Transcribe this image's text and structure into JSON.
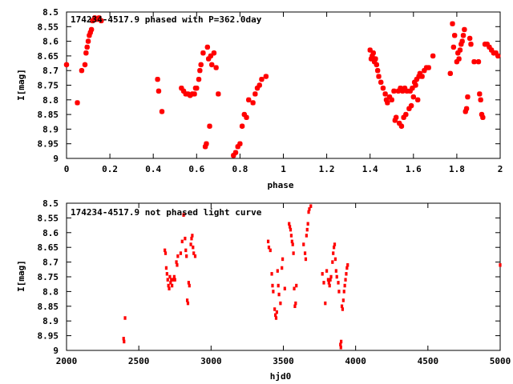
{
  "colors": {
    "points": "#ff0000",
    "axis": "#000000"
  },
  "chart_data": [
    {
      "type": "scatter",
      "title": "174234-4517.9 phased with P=362.0day",
      "xlabel": "phase",
      "ylabel": "I[mag]",
      "xlim": [
        0,
        2
      ],
      "ylim": [
        8.5,
        9
      ],
      "y_inverted": true,
      "grid": false,
      "xticks": [
        "0",
        "0.2",
        "0.4",
        "0.6",
        "0.8",
        "1",
        "1.2",
        "1.4",
        "1.6",
        "1.8",
        "2"
      ],
      "xtick_values": [
        0,
        0.2,
        0.4,
        0.6,
        0.8,
        1.0,
        1.2,
        1.4,
        1.6,
        1.8,
        2.0
      ],
      "yticks": [
        "8.5",
        "8.55",
        "8.6",
        "8.65",
        "8.7",
        "8.75",
        "8.8",
        "8.85",
        "8.9",
        "8.95",
        "9"
      ],
      "ytick_values": [
        8.5,
        8.55,
        8.6,
        8.65,
        8.7,
        8.75,
        8.8,
        8.85,
        8.9,
        8.95,
        9.0
      ],
      "points": [
        [
          0.0,
          8.68
        ],
        [
          0.05,
          8.81
        ],
        [
          0.07,
          8.7
        ],
        [
          0.085,
          8.68
        ],
        [
          0.09,
          8.64
        ],
        [
          0.095,
          8.62
        ],
        [
          0.1,
          8.6
        ],
        [
          0.105,
          8.58
        ],
        [
          0.11,
          8.57
        ],
        [
          0.115,
          8.56
        ],
        [
          0.12,
          8.53
        ],
        [
          0.13,
          8.52
        ],
        [
          0.14,
          8.525
        ],
        [
          0.15,
          8.52
        ],
        [
          0.16,
          8.53
        ],
        [
          0.42,
          8.73
        ],
        [
          0.425,
          8.77
        ],
        [
          0.44,
          8.84
        ],
        [
          0.53,
          8.76
        ],
        [
          0.54,
          8.77
        ],
        [
          0.55,
          8.78
        ],
        [
          0.56,
          8.78
        ],
        [
          0.57,
          8.785
        ],
        [
          0.58,
          8.78
        ],
        [
          0.59,
          8.78
        ],
        [
          0.595,
          8.76
        ],
        [
          0.6,
          8.76
        ],
        [
          0.61,
          8.73
        ],
        [
          0.615,
          8.7
        ],
        [
          0.62,
          8.68
        ],
        [
          0.63,
          8.64
        ],
        [
          0.64,
          8.96
        ],
        [
          0.645,
          8.95
        ],
        [
          0.65,
          8.62
        ],
        [
          0.655,
          8.66
        ],
        [
          0.66,
          8.89
        ],
        [
          0.665,
          8.65
        ],
        [
          0.67,
          8.68
        ],
        [
          0.68,
          8.64
        ],
        [
          0.69,
          8.69
        ],
        [
          0.7,
          8.78
        ],
        [
          0.77,
          8.99
        ],
        [
          0.78,
          8.98
        ],
        [
          0.79,
          8.96
        ],
        [
          0.8,
          8.95
        ],
        [
          0.81,
          8.89
        ],
        [
          0.82,
          8.85
        ],
        [
          0.83,
          8.86
        ],
        [
          0.84,
          8.8
        ],
        [
          0.86,
          8.81
        ],
        [
          0.87,
          8.78
        ],
        [
          0.88,
          8.76
        ],
        [
          0.89,
          8.75
        ],
        [
          0.9,
          8.73
        ],
        [
          0.92,
          8.72
        ],
        [
          1.4,
          8.63
        ],
        [
          1.405,
          8.66
        ],
        [
          1.41,
          8.65
        ],
        [
          1.415,
          8.64
        ],
        [
          1.42,
          8.67
        ],
        [
          1.425,
          8.66
        ],
        [
          1.43,
          8.68
        ],
        [
          1.435,
          8.7
        ],
        [
          1.44,
          8.72
        ],
        [
          1.45,
          8.74
        ],
        [
          1.46,
          8.76
        ],
        [
          1.47,
          8.78
        ],
        [
          1.475,
          8.8
        ],
        [
          1.48,
          8.81
        ],
        [
          1.49,
          8.79
        ],
        [
          1.5,
          8.8
        ],
        [
          1.51,
          8.77
        ],
        [
          1.515,
          8.87
        ],
        [
          1.52,
          8.86
        ],
        [
          1.53,
          8.77
        ],
        [
          1.535,
          8.88
        ],
        [
          1.54,
          8.76
        ],
        [
          1.545,
          8.89
        ],
        [
          1.55,
          8.77
        ],
        [
          1.555,
          8.86
        ],
        [
          1.56,
          8.76
        ],
        [
          1.565,
          8.85
        ],
        [
          1.57,
          8.77
        ],
        [
          1.58,
          8.83
        ],
        [
          1.585,
          8.77
        ],
        [
          1.59,
          8.82
        ],
        [
          1.595,
          8.76
        ],
        [
          1.6,
          8.79
        ],
        [
          1.605,
          8.74
        ],
        [
          1.61,
          8.75
        ],
        [
          1.615,
          8.73
        ],
        [
          1.62,
          8.8
        ],
        [
          1.625,
          8.72
        ],
        [
          1.63,
          8.71
        ],
        [
          1.64,
          8.72
        ],
        [
          1.65,
          8.7
        ],
        [
          1.66,
          8.69
        ],
        [
          1.67,
          8.69
        ],
        [
          1.69,
          8.65
        ],
        [
          1.77,
          8.71
        ],
        [
          1.78,
          8.54
        ],
        [
          1.785,
          8.62
        ],
        [
          1.79,
          8.58
        ],
        [
          1.8,
          8.67
        ],
        [
          1.805,
          8.64
        ],
        [
          1.81,
          8.66
        ],
        [
          1.815,
          8.63
        ],
        [
          1.82,
          8.61
        ],
        [
          1.825,
          8.6
        ],
        [
          1.83,
          8.58
        ],
        [
          1.835,
          8.56
        ],
        [
          1.84,
          8.84
        ],
        [
          1.845,
          8.83
        ],
        [
          1.85,
          8.79
        ],
        [
          1.86,
          8.59
        ],
        [
          1.865,
          8.61
        ],
        [
          1.88,
          8.67
        ],
        [
          1.9,
          8.67
        ],
        [
          1.905,
          8.78
        ],
        [
          1.91,
          8.8
        ],
        [
          1.915,
          8.85
        ],
        [
          1.92,
          8.86
        ],
        [
          1.93,
          8.61
        ],
        [
          1.94,
          8.61
        ],
        [
          1.95,
          8.62
        ],
        [
          1.96,
          8.63
        ],
        [
          1.97,
          8.64
        ],
        [
          1.98,
          8.64
        ],
        [
          1.99,
          8.65
        ]
      ]
    },
    {
      "type": "scatter",
      "title": "174234-4517.9 not phased light curve",
      "xlabel": "hjd0",
      "ylabel": "I[mag]",
      "xlim": [
        2000,
        5000
      ],
      "ylim": [
        8.5,
        9
      ],
      "y_inverted": true,
      "grid": false,
      "xticks": [
        "2000",
        "2500",
        "3000",
        "3500",
        "4000",
        "4500",
        "5000"
      ],
      "xtick_values": [
        2000,
        2500,
        3000,
        3500,
        4000,
        4500,
        5000
      ],
      "yticks": [
        "8.5",
        "8.55",
        "8.6",
        "8.65",
        "8.7",
        "8.75",
        "8.8",
        "8.85",
        "8.9",
        "8.95",
        "9"
      ],
      "ytick_values": [
        8.5,
        8.55,
        8.6,
        8.65,
        8.7,
        8.75,
        8.8,
        8.85,
        8.9,
        8.95,
        9.0
      ],
      "points": [
        [
          2395,
          8.96
        ],
        [
          2398,
          8.97
        ],
        [
          2405,
          8.89
        ],
        [
          2680,
          8.66
        ],
        [
          2685,
          8.67
        ],
        [
          2690,
          8.72
        ],
        [
          2695,
          8.74
        ],
        [
          2700,
          8.76
        ],
        [
          2705,
          8.78
        ],
        [
          2710,
          8.79
        ],
        [
          2715,
          8.75
        ],
        [
          2720,
          8.77
        ],
        [
          2725,
          8.76
        ],
        [
          2730,
          8.78
        ],
        [
          2740,
          8.76
        ],
        [
          2745,
          8.75
        ],
        [
          2750,
          8.76
        ],
        [
          2760,
          8.7
        ],
        [
          2765,
          8.71
        ],
        [
          2770,
          8.68
        ],
        [
          2790,
          8.67
        ],
        [
          2800,
          8.63
        ],
        [
          2810,
          8.54
        ],
        [
          2820,
          8.62
        ],
        [
          2825,
          8.66
        ],
        [
          2830,
          8.68
        ],
        [
          2835,
          8.83
        ],
        [
          2840,
          8.84
        ],
        [
          2845,
          8.77
        ],
        [
          2850,
          8.78
        ],
        [
          2860,
          8.64
        ],
        [
          2865,
          8.62
        ],
        [
          2870,
          8.61
        ],
        [
          2875,
          8.65
        ],
        [
          2880,
          8.67
        ],
        [
          2890,
          8.68
        ],
        [
          3395,
          8.63
        ],
        [
          3400,
          8.65
        ],
        [
          3410,
          8.66
        ],
        [
          3420,
          8.74
        ],
        [
          3425,
          8.78
        ],
        [
          3430,
          8.8
        ],
        [
          3440,
          8.86
        ],
        [
          3445,
          8.88
        ],
        [
          3450,
          8.89
        ],
        [
          3455,
          8.87
        ],
        [
          3460,
          8.73
        ],
        [
          3465,
          8.78
        ],
        [
          3470,
          8.81
        ],
        [
          3480,
          8.84
        ],
        [
          3490,
          8.72
        ],
        [
          3495,
          8.69
        ],
        [
          3510,
          8.79
        ],
        [
          3540,
          8.57
        ],
        [
          3545,
          8.58
        ],
        [
          3550,
          8.59
        ],
        [
          3555,
          8.61
        ],
        [
          3560,
          8.63
        ],
        [
          3565,
          8.64
        ],
        [
          3570,
          8.67
        ],
        [
          3575,
          8.79
        ],
        [
          3580,
          8.85
        ],
        [
          3585,
          8.84
        ],
        [
          3590,
          8.78
        ],
        [
          3640,
          8.64
        ],
        [
          3650,
          8.67
        ],
        [
          3655,
          8.69
        ],
        [
          3660,
          8.61
        ],
        [
          3665,
          8.59
        ],
        [
          3670,
          8.57
        ],
        [
          3675,
          8.53
        ],
        [
          3680,
          8.52
        ],
        [
          3690,
          8.51
        ],
        [
          3770,
          8.74
        ],
        [
          3780,
          8.77
        ],
        [
          3790,
          8.84
        ],
        [
          3800,
          8.73
        ],
        [
          3810,
          8.76
        ],
        [
          3815,
          8.77
        ],
        [
          3820,
          8.78
        ],
        [
          3825,
          8.76
        ],
        [
          3830,
          8.75
        ],
        [
          3840,
          8.7
        ],
        [
          3845,
          8.67
        ],
        [
          3850,
          8.65
        ],
        [
          3855,
          8.64
        ],
        [
          3860,
          8.69
        ],
        [
          3865,
          8.73
        ],
        [
          3870,
          8.75
        ],
        [
          3880,
          8.77
        ],
        [
          3885,
          8.8
        ],
        [
          3895,
          8.98
        ],
        [
          3898,
          8.99
        ],
        [
          3900,
          8.97
        ],
        [
          3905,
          8.85
        ],
        [
          3910,
          8.86
        ],
        [
          3915,
          8.83
        ],
        [
          3920,
          8.8
        ],
        [
          3925,
          8.78
        ],
        [
          3930,
          8.76
        ],
        [
          3935,
          8.74
        ],
        [
          3940,
          8.72
        ],
        [
          3945,
          8.71
        ],
        [
          5000,
          8.71
        ]
      ]
    }
  ]
}
